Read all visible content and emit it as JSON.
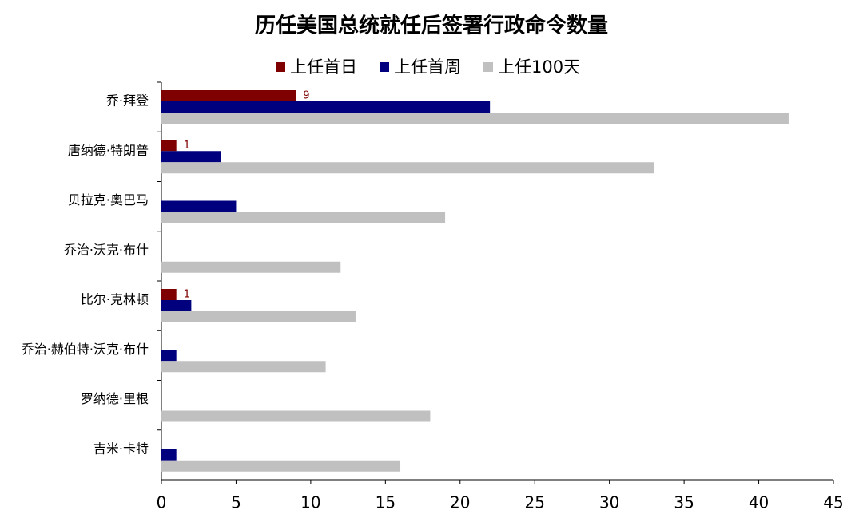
{
  "chart_data": {
    "type": "hbar",
    "title": "历任美国总统就任后签署行政命令数量",
    "categories": [
      "乔·拜登",
      "唐纳德·特朗普",
      "贝拉克·奥巴马",
      "乔治·沃克·布什",
      "比尔·克林顿",
      "乔治·赫伯特·沃克·布什",
      "罗纳德·里根",
      "吉米·卡特"
    ],
    "series": [
      {
        "name": "上任首日",
        "color": "#7f0000",
        "show_labels": true,
        "values": [
          9,
          1,
          null,
          null,
          1,
          null,
          null,
          null
        ]
      },
      {
        "name": "上任首周",
        "color": "#00007f",
        "values": [
          22,
          4,
          5,
          null,
          2,
          1,
          null,
          1
        ]
      },
      {
        "name": "上任100天",
        "color": "#c0c0c0",
        "values": [
          42,
          33,
          19,
          12,
          13,
          11,
          18,
          16
        ]
      }
    ],
    "xlim": [
      0,
      45
    ],
    "xticks": [
      0,
      5,
      10,
      15,
      20,
      25,
      30,
      35,
      40,
      45
    ],
    "legend": "top"
  }
}
